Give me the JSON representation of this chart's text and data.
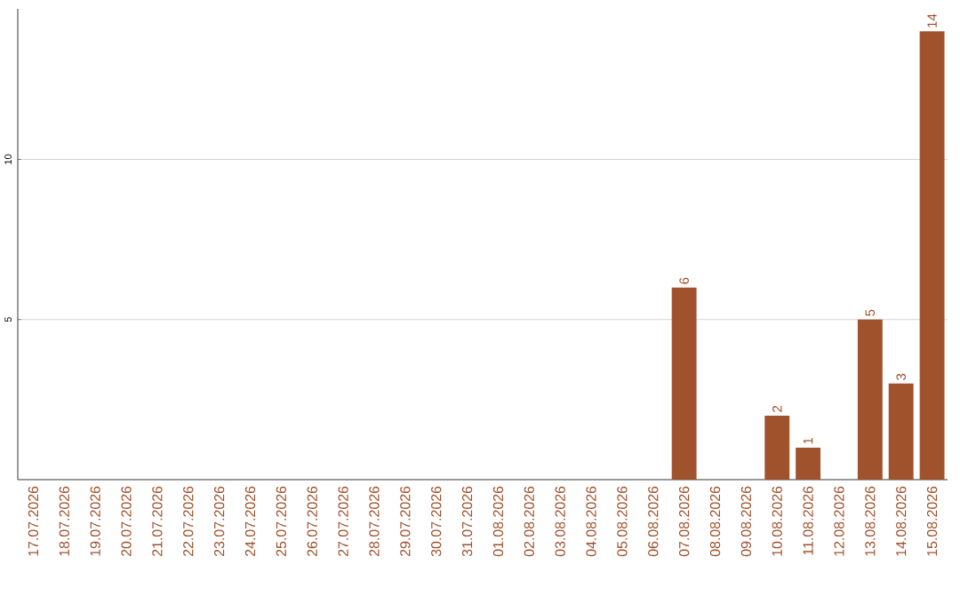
{
  "chart_data": {
    "type": "bar",
    "categories": [
      "17.07.2026",
      "18.07.2026",
      "19.07.2026",
      "20.07.2026",
      "21.07.2026",
      "22.07.2026",
      "23.07.2026",
      "24.07.2026",
      "25.07.2026",
      "26.07.2026",
      "27.07.2026",
      "28.07.2026",
      "29.07.2026",
      "30.07.2026",
      "31.07.2026",
      "01.08.2026",
      "02.08.2026",
      "03.08.2026",
      "04.08.2026",
      "05.08.2026",
      "06.08.2026",
      "07.08.2026",
      "08.08.2026",
      "09.08.2026",
      "10.08.2026",
      "11.08.2026",
      "12.08.2026",
      "13.08.2026",
      "14.08.2026",
      "15.08.2026"
    ],
    "values": [
      0,
      0,
      0,
      0,
      0,
      0,
      0,
      0,
      0,
      0,
      0,
      0,
      0,
      0,
      0,
      0,
      0,
      0,
      0,
      0,
      0,
      6,
      0,
      0,
      2,
      1,
      0,
      5,
      3,
      14
    ],
    "value_labels": [
      null,
      null,
      null,
      null,
      null,
      null,
      null,
      null,
      null,
      null,
      null,
      null,
      null,
      null,
      null,
      null,
      null,
      null,
      null,
      null,
      null,
      "6",
      null,
      null,
      "2",
      "1",
      null,
      "5",
      "3",
      "14"
    ],
    "color": "#a0522d",
    "ylim": [
      0,
      14.7
    ],
    "yticks": [
      5,
      10
    ],
    "grid": "y"
  }
}
